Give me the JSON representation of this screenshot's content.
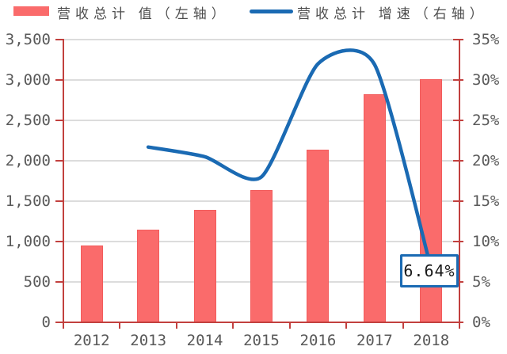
{
  "colors": {
    "bar_fill": "#FA6B6B",
    "bar_border": "#F25C5C",
    "line": "#1A6AB3",
    "axis": "#C2403E",
    "grid": "#DCDCDC",
    "tick_text": "#595959",
    "legend_text": "#4D4D4D",
    "annotation_text": "#1A1A1A",
    "background": "#FFFFFF"
  },
  "chart_data": {
    "type": "bar+line combo",
    "categories": [
      "2012",
      "2013",
      "2014",
      "2015",
      "2016",
      "2017",
      "2018"
    ],
    "series": [
      {
        "name": "营收总计 值（左轴）",
        "type": "bar",
        "axis": "left",
        "values": [
          950,
          1150,
          1390,
          1640,
          2140,
          2820,
          3010
        ]
      },
      {
        "name": "营收总计 增速（右轴）",
        "type": "line",
        "axis": "right",
        "values": [
          null,
          21.7,
          20.5,
          18.0,
          32.0,
          31.9,
          6.64
        ]
      }
    ],
    "left_axis": {
      "min": 0,
      "max": 3500,
      "step": 500,
      "tick_labels": [
        "3,500",
        "3,000",
        "2,500",
        "2,000",
        "1,500",
        "1,000",
        "500",
        "0"
      ]
    },
    "right_axis": {
      "min": 0,
      "max": 35,
      "step": 5,
      "unit": "%",
      "tick_labels": [
        "35%",
        "30%",
        "25%",
        "20%",
        "15%",
        "10%",
        "5%",
        "0%"
      ]
    },
    "annotations": [
      {
        "category": "2018",
        "series": "营收总计 增速（右轴）",
        "text": "6.64%"
      }
    ],
    "legend_position": "top",
    "grid": true,
    "line_smoothing": "spline"
  }
}
